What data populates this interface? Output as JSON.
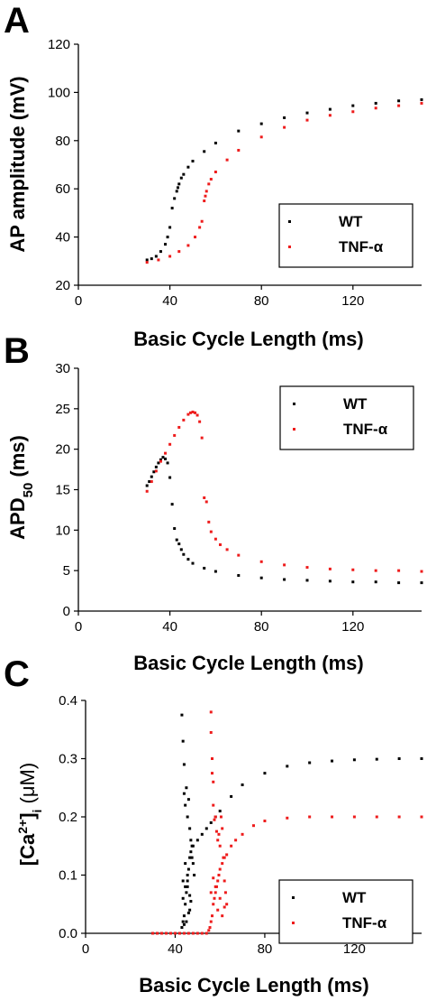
{
  "colors": {
    "wt": "#000000",
    "tnf": "#ee1c1c"
  },
  "chart_data": [
    {
      "type": "scatter",
      "panel_label": "A",
      "xlabel": "Basic Cycle Length (ms)",
      "ylabel": "AP amplitude (mV)",
      "xlim": [
        0,
        150
      ],
      "ylim": [
        20,
        120
      ],
      "xticks": [
        0,
        40,
        80,
        120
      ],
      "yticks": [
        20,
        40,
        60,
        80,
        100,
        120
      ],
      "legend": "bottom-right",
      "series": [
        {
          "name": "WT",
          "color": "#000000",
          "x": [
            30,
            32,
            34,
            36,
            38,
            39,
            40,
            41,
            42,
            43,
            43.5,
            44,
            45,
            46,
            48,
            50,
            55,
            60,
            70,
            80,
            90,
            100,
            110,
            120,
            130,
            140,
            150
          ],
          "y": [
            30.5,
            31,
            32,
            34,
            37,
            40,
            44,
            52,
            56,
            59,
            60.5,
            62,
            64.5,
            66,
            69,
            71.5,
            75.5,
            79,
            84,
            87,
            89.5,
            91.5,
            93,
            94.5,
            95.5,
            96.5,
            97
          ]
        },
        {
          "name": "TNF-α",
          "color": "#ee1c1c",
          "x": [
            30,
            35,
            40,
            44,
            48,
            51,
            53,
            54,
            55,
            55.5,
            56,
            57,
            58,
            60,
            65,
            70,
            80,
            90,
            100,
            110,
            120,
            130,
            140,
            150
          ],
          "y": [
            29.5,
            30.5,
            32,
            34,
            36.5,
            40,
            44,
            46.5,
            55,
            57,
            59,
            62,
            64,
            67,
            72,
            76,
            81.5,
            85.5,
            88.5,
            90.5,
            92,
            93.5,
            94.5,
            95.5
          ]
        }
      ]
    },
    {
      "type": "scatter",
      "panel_label": "B",
      "xlabel": "Basic Cycle Length (ms)",
      "ylabel_main": "APD",
      "ylabel_sub": "50",
      "ylabel_unit": " (ms)",
      "xlim": [
        0,
        150
      ],
      "ylim": [
        0,
        30
      ],
      "xticks": [
        0,
        40,
        80,
        120
      ],
      "yticks": [
        0,
        5,
        10,
        15,
        20,
        25,
        30
      ],
      "legend": "top-right",
      "series": [
        {
          "name": "WT",
          "color": "#000000",
          "x": [
            30,
            31,
            32,
            33,
            34,
            35,
            36,
            37,
            38,
            39,
            40,
            41,
            42,
            43,
            44,
            45,
            46,
            48,
            50,
            55,
            60,
            70,
            80,
            90,
            100,
            110,
            120,
            130,
            140,
            150
          ],
          "y": [
            15.5,
            16,
            16.6,
            17.2,
            17.8,
            18.3,
            18.7,
            19,
            18.8,
            18.3,
            16.5,
            13.2,
            10.2,
            8.8,
            8.3,
            7.6,
            7,
            6.4,
            5.9,
            5.3,
            4.9,
            4.4,
            4.1,
            3.9,
            3.8,
            3.7,
            3.6,
            3.6,
            3.5,
            3.5
          ]
        },
        {
          "name": "TNF-α",
          "color": "#ee1c1c",
          "x": [
            30,
            32,
            34,
            36,
            38,
            40,
            42,
            44,
            46,
            48,
            49,
            50,
            51,
            52,
            53,
            54,
            55,
            56,
            57,
            58,
            60,
            62,
            65,
            70,
            80,
            90,
            100,
            110,
            120,
            130,
            140,
            150
          ],
          "y": [
            14.8,
            16,
            17.3,
            18.5,
            19.5,
            20.6,
            21.7,
            22.7,
            23.6,
            24.3,
            24.5,
            24.6,
            24.5,
            24.2,
            23.4,
            21.4,
            14,
            13.5,
            11,
            9.8,
            8.9,
            8.2,
            7.6,
            6.9,
            6.1,
            5.7,
            5.4,
            5.2,
            5.1,
            5,
            5,
            4.9
          ]
        }
      ]
    },
    {
      "type": "scatter",
      "panel_label": "C",
      "xlabel": "Basic Cycle Length (ms)",
      "ylabel_pre": "[Ca",
      "ylabel_sup": "2+",
      "ylabel_mid": "]",
      "ylabel_sub": "i",
      "ylabel_unit": " (μM)",
      "xlim": [
        0,
        150
      ],
      "ylim": [
        0,
        0.4
      ],
      "xticks": [
        0,
        40,
        80,
        120
      ],
      "yticks": [
        0.0,
        0.1,
        0.2,
        0.3,
        0.4
      ],
      "legend": "bottom-right",
      "series": [
        {
          "name": "WT",
          "color": "#000000",
          "x": [
            30,
            32,
            34,
            36,
            38,
            40,
            42,
            43,
            43.5,
            44,
            44.5,
            45,
            45.5,
            46,
            46.5,
            47,
            48,
            50,
            52,
            54,
            56,
            58,
            60,
            65,
            70,
            80,
            90,
            100,
            110,
            120,
            130,
            140,
            150,
            43,
            43.5,
            44,
            44,
            44.5,
            45,
            45.5,
            46,
            46.5,
            47,
            47.5,
            48,
            48.5,
            43.5,
            44.5,
            45.5,
            46.5,
            47.5,
            44,
            45,
            46,
            47,
            43.5,
            44.5,
            45.5,
            46.5
          ],
          "y": [
            0,
            0,
            0,
            0,
            0,
            0,
            0,
            0.01,
            0.02,
            0.03,
            0.05,
            0.07,
            0.09,
            0.11,
            0.13,
            0.14,
            0.15,
            0.16,
            0.17,
            0.18,
            0.19,
            0.2,
            0.21,
            0.235,
            0.255,
            0.275,
            0.287,
            0.293,
            0.296,
            0.298,
            0.299,
            0.3,
            0.3,
            0.375,
            0.33,
            0.24,
            0.29,
            0.22,
            0.25,
            0.2,
            0.23,
            0.18,
            0.16,
            0.15,
            0.12,
            0.1,
            0.06,
            0.08,
            0.1,
            0.04,
            0.13,
            0.015,
            0.02,
            0.035,
            0.055,
            0.09,
            0.12,
            0.08,
            0.065
          ]
        },
        {
          "name": "TNF-α",
          "color": "#ee1c1c",
          "x": [
            30,
            32,
            34,
            36,
            38,
            40,
            42,
            44,
            46,
            48,
            50,
            52,
            54,
            55,
            55.5,
            56,
            56.5,
            57,
            57.5,
            58,
            58.5,
            59,
            59.5,
            60,
            61,
            62,
            63,
            65,
            67,
            70,
            75,
            80,
            90,
            100,
            110,
            120,
            130,
            140,
            150,
            56,
            56,
            56.5,
            56.5,
            57,
            57,
            57.5,
            58,
            58.5,
            59,
            59.5,
            60,
            60.5,
            61,
            61.5,
            62,
            62.5,
            63,
            56,
            57,
            58,
            59,
            60,
            61,
            62
          ],
          "y": [
            0,
            0,
            0,
            0,
            0,
            0,
            0,
            0,
            0,
            0,
            0,
            0,
            0,
            0.005,
            0.01,
            0.02,
            0.03,
            0.05,
            0.06,
            0.07,
            0.08,
            0.09,
            0.1,
            0.11,
            0.12,
            0.13,
            0.135,
            0.15,
            0.16,
            0.17,
            0.185,
            0.193,
            0.198,
            0.2,
            0.2,
            0.2,
            0.2,
            0.2,
            0.2,
            0.38,
            0.345,
            0.3,
            0.275,
            0.26,
            0.22,
            0.195,
            0.2,
            0.175,
            0.16,
            0.17,
            0.15,
            0.2,
            0.18,
            0.13,
            0.09,
            0.07,
            0.05,
            0.07,
            0.095,
            0.08,
            0.04,
            0.06,
            0.03,
            0.045
          ]
        }
      ]
    }
  ]
}
